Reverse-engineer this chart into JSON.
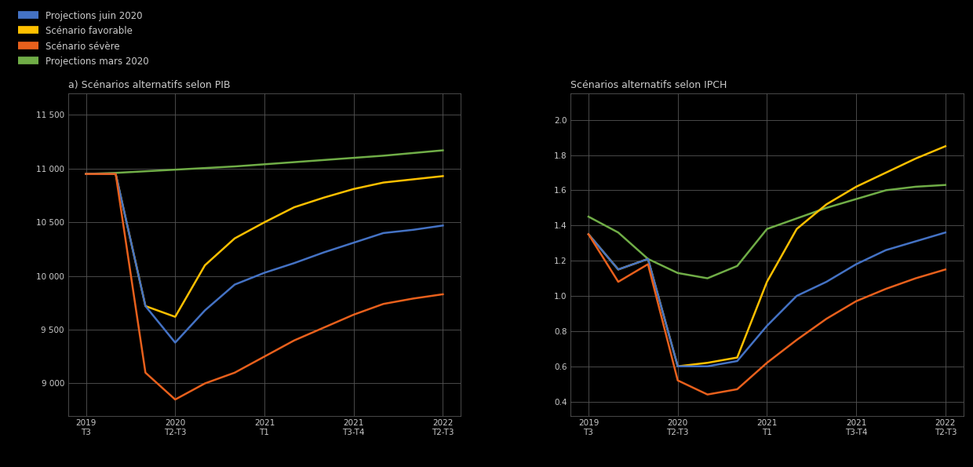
{
  "legend_labels": [
    "Projections juin 2020",
    "Scénario favorable",
    "Scénario sévère",
    "Projections mars 2020"
  ],
  "legend_colors": [
    "#4472c4",
    "#ffc000",
    "#e8601c",
    "#70ad47"
  ],
  "left_title": "a) Scénarios alternatifs selon PIB",
  "right_title": "Scénarios alternatifs selon IPCH",
  "left_yticks": [
    9000,
    9500,
    10000,
    10500,
    11000,
    11500
  ],
  "left_ylim": [
    8700,
    11700
  ],
  "right_yticks": [
    0.4,
    0.6,
    0.8,
    1.0,
    1.2,
    1.4,
    1.6,
    1.8,
    2.0
  ],
  "right_ylim": [
    0.32,
    2.15
  ],
  "x_tick_pos": [
    0,
    3,
    6,
    9,
    12
  ],
  "x_tick_labels": [
    "2019\nT3",
    "2020\nT2-T3",
    "2021\nT1",
    "2021\nT3-T4",
    "2022\nT2-T3"
  ],
  "left_series": {
    "blue": [
      10950,
      10950,
      9720,
      9380,
      9680,
      9920,
      10030,
      10120,
      10220,
      10310,
      10400,
      10430,
      10470
    ],
    "yellow": [
      10950,
      10950,
      9720,
      9620,
      10100,
      10350,
      10500,
      10640,
      10730,
      10810,
      10870,
      10900,
      10930
    ],
    "orange": [
      10950,
      10950,
      9100,
      8850,
      9000,
      9100,
      9250,
      9400,
      9520,
      9640,
      9740,
      9790,
      9830
    ],
    "green": [
      10950,
      10960,
      10975,
      10990,
      11005,
      11020,
      11040,
      11060,
      11080,
      11100,
      11120,
      11145,
      11170
    ]
  },
  "right_series": {
    "blue": [
      1.35,
      1.15,
      1.21,
      0.6,
      0.6,
      0.63,
      0.83,
      1.0,
      1.08,
      1.18,
      1.26,
      1.31,
      1.36
    ],
    "yellow": [
      1.35,
      1.15,
      1.21,
      0.6,
      0.62,
      0.65,
      1.08,
      1.38,
      1.52,
      1.62,
      1.7,
      1.78,
      1.85
    ],
    "orange": [
      1.35,
      1.08,
      1.18,
      0.52,
      0.44,
      0.47,
      0.62,
      0.75,
      0.87,
      0.97,
      1.04,
      1.1,
      1.15
    ],
    "green": [
      1.45,
      1.36,
      1.21,
      1.13,
      1.1,
      1.17,
      1.38,
      1.44,
      1.5,
      1.55,
      1.6,
      1.62,
      1.63
    ]
  },
  "num_points": 13,
  "background_color": "#000000",
  "plot_bg_color": "#000000",
  "grid_color": "#555555",
  "text_color": "#cccccc",
  "line_width": 1.8
}
